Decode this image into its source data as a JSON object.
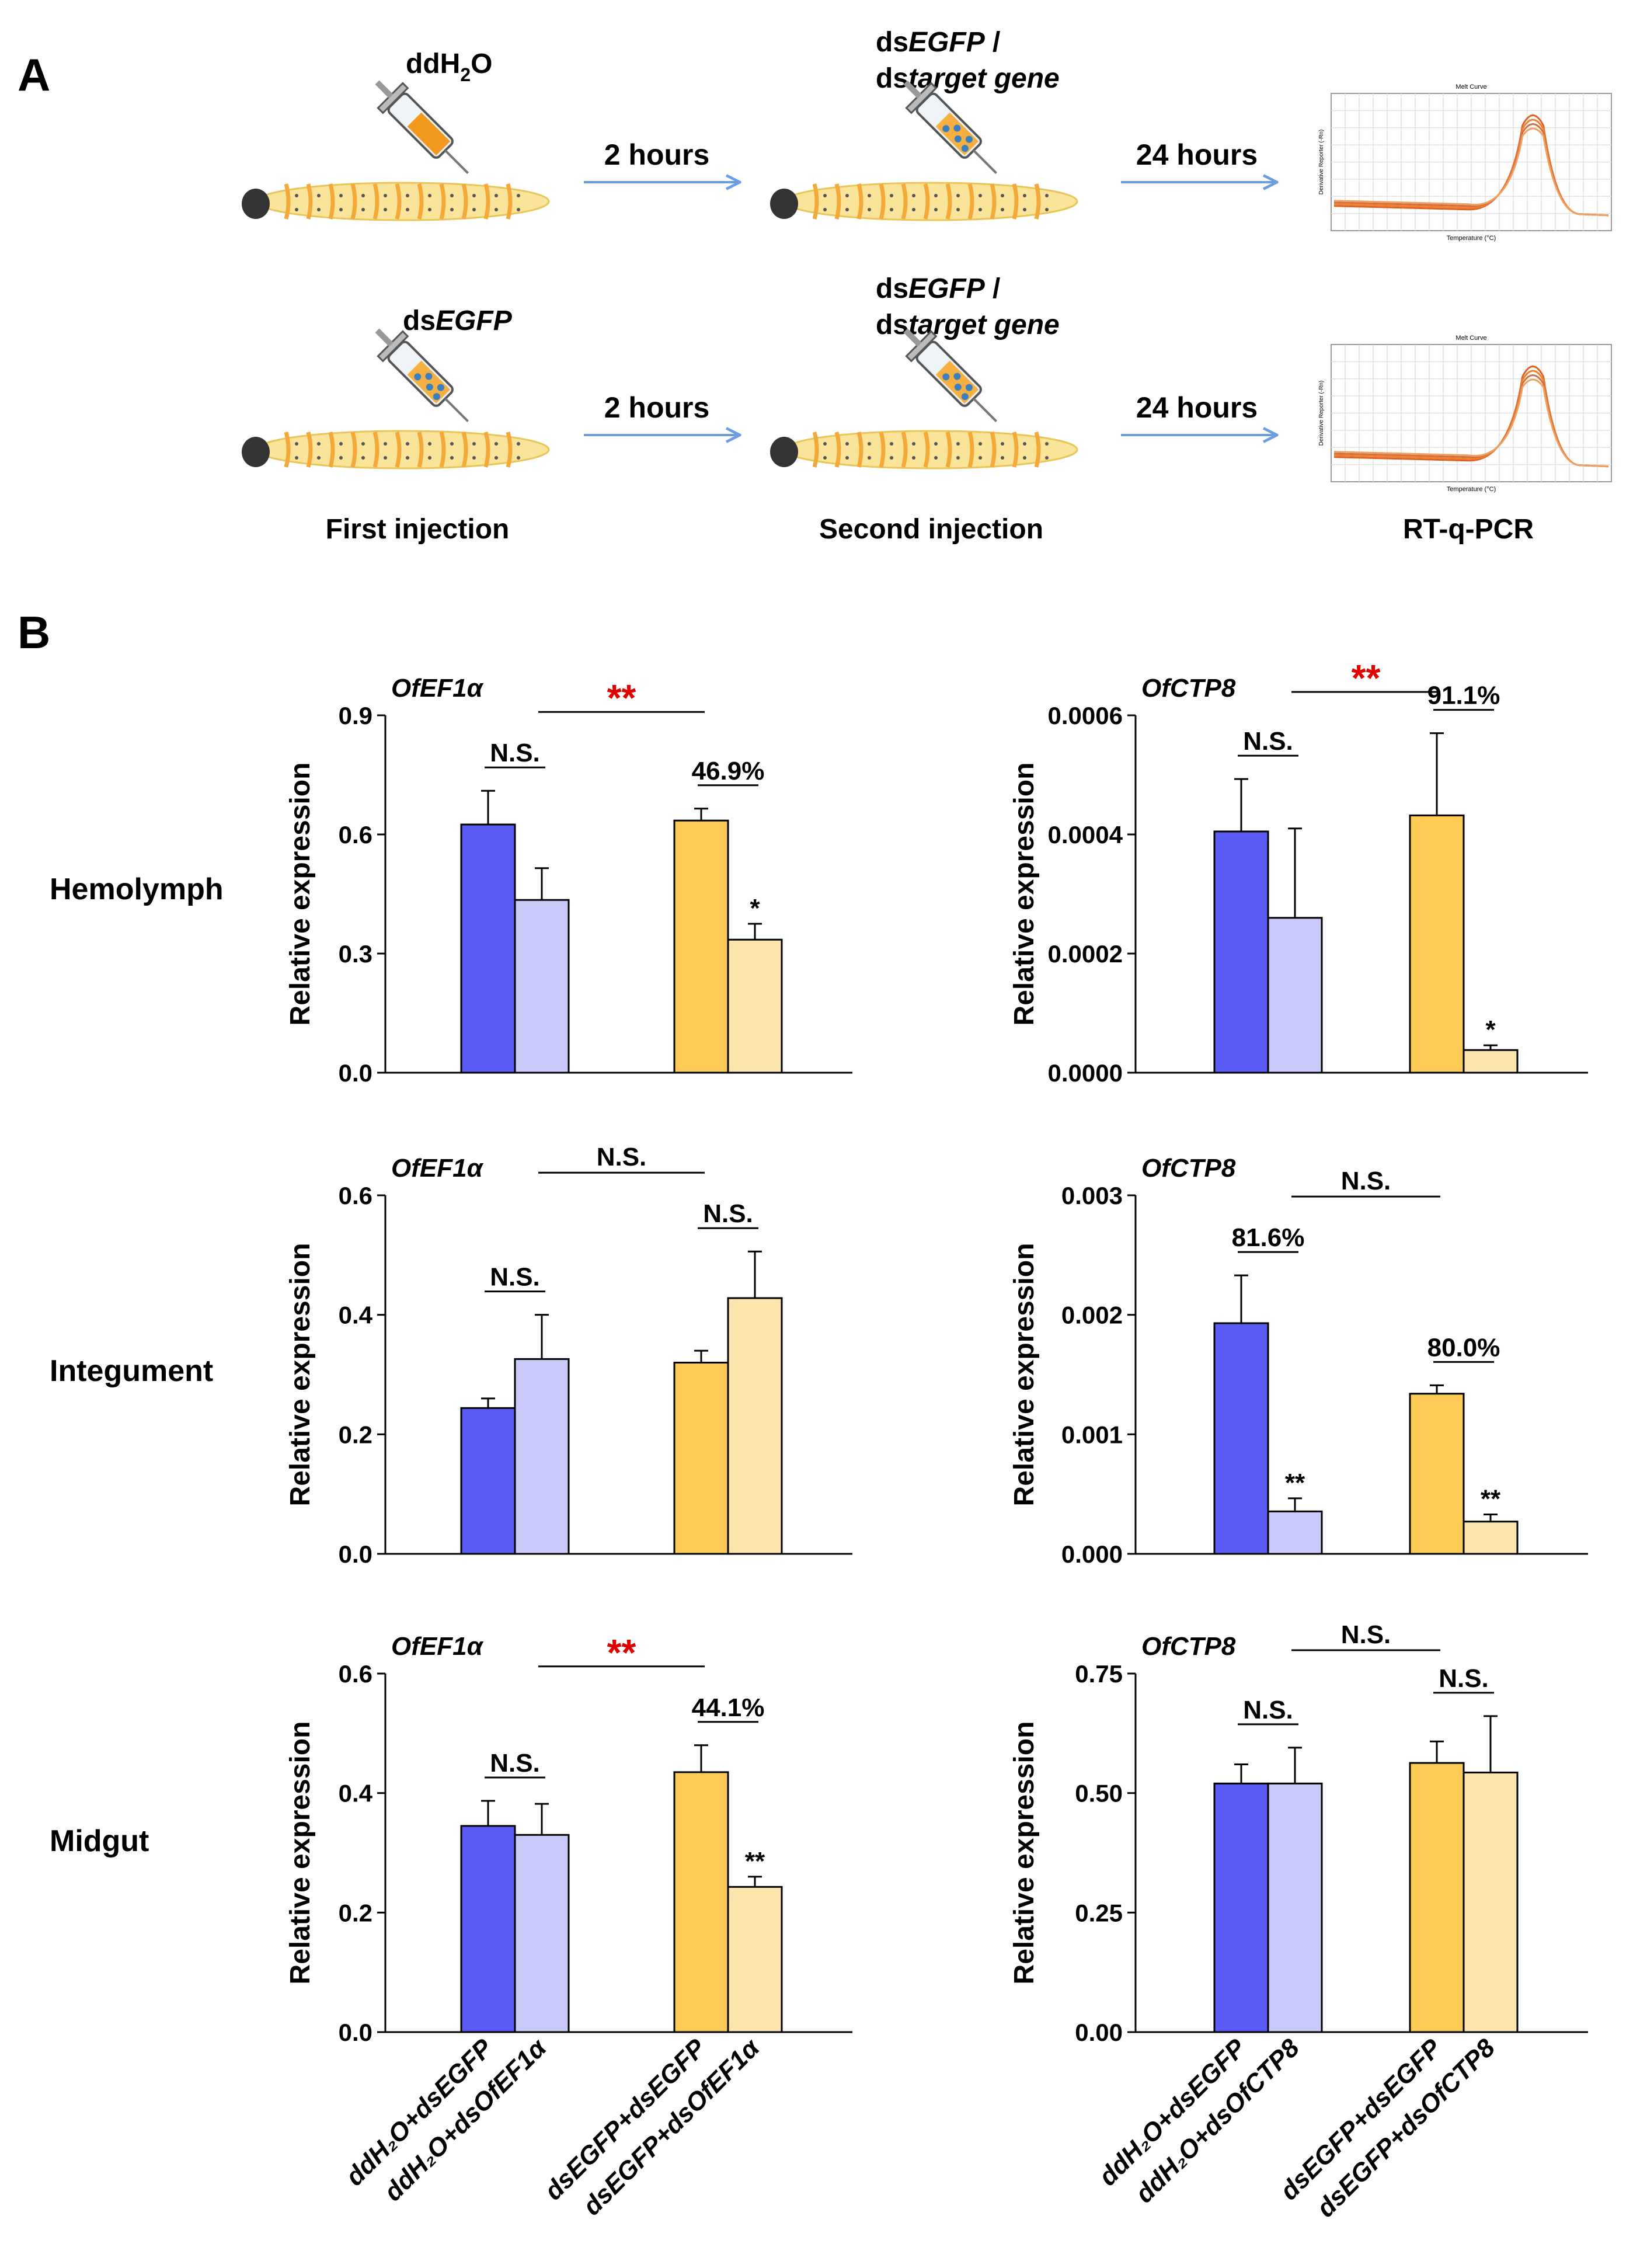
{
  "panels": {
    "a": "A",
    "b": "B"
  },
  "schematic": {
    "row1_first": "ddH2O",
    "row2_first": "dsEGFP",
    "second_line1": "dsEGFP /",
    "second_line2": "dstarget gene",
    "arrow1": "2 hours",
    "arrow2": "24 hours",
    "steps": [
      "First injection",
      "Second injection",
      "RT-q-PCR"
    ],
    "melt_title": "Melt Curve",
    "melt_xlabel": "Temperature (°C)",
    "melt_ylabel": "Derivative Reporter (-Rn)"
  },
  "tissues": [
    "Hemolymph",
    "Integument",
    "Midgut"
  ],
  "colors": {
    "blue_dark": "#5b5bf5",
    "blue_light": "#c9c9fa",
    "yellow_dark": "#fccb55",
    "yellow_light": "#fde6ad",
    "significance": "#e00000",
    "arrow": "#6a9ee0"
  },
  "ylabel": "Relative expression",
  "chart_data": [
    {
      "type": "bar",
      "tissue": "Hemolymph",
      "title": "OfEF1α",
      "categories": [
        "ddH₂O+dsEGFP",
        "ddH₂O+dsOfEF1α",
        "dsEGFP+dsEGFP",
        "dsEGFP+dsOfEF1α"
      ],
      "values": [
        0.625,
        0.435,
        0.635,
        0.335
      ],
      "errors": [
        0.085,
        0.08,
        0.03,
        0.04
      ],
      "ylim": [
        0,
        0.9
      ],
      "yticks": [
        "0.0",
        "0.3",
        "0.6",
        "0.9"
      ],
      "pair_labels": [
        "N.S.",
        "46.9%"
      ],
      "bar_marks": [
        "",
        "",
        "",
        "*"
      ],
      "between": "**"
    },
    {
      "type": "bar",
      "tissue": "Hemolymph",
      "title": "OfCTP8",
      "categories": [
        "ddH₂O+dsEGFP",
        "ddH₂O+dsOfCTP8",
        "dsEGFP+dsEGFP",
        "dsEGFP+dsOfCTP8"
      ],
      "values": [
        0.000405,
        0.00026,
        0.000432,
        3.8e-05
      ],
      "errors": [
        8.8e-05,
        0.00015,
        0.000138,
        8e-06
      ],
      "ylim": [
        0,
        0.0006
      ],
      "yticks": [
        "0.0000",
        "0.0002",
        "0.0004",
        "0.0006"
      ],
      "pair_labels": [
        "N.S.",
        "91.1%"
      ],
      "bar_marks": [
        "",
        "",
        "",
        "*"
      ],
      "between": "**"
    },
    {
      "type": "bar",
      "tissue": "Integument",
      "title": "OfEF1α",
      "categories": [
        "ddH₂O+dsEGFP",
        "ddH₂O+dsOfEF1α",
        "dsEGFP+dsEGFP",
        "dsEGFP+dsOfEF1α"
      ],
      "values": [
        0.244,
        0.326,
        0.32,
        0.428
      ],
      "errors": [
        0.016,
        0.074,
        0.02,
        0.078
      ],
      "ylim": [
        0,
        0.6
      ],
      "yticks": [
        "0.0",
        "0.2",
        "0.4",
        "0.6"
      ],
      "pair_labels": [
        "N.S.",
        "N.S."
      ],
      "bar_marks": [
        "",
        "",
        "",
        ""
      ],
      "between": "N.S."
    },
    {
      "type": "bar",
      "tissue": "Integument",
      "title": "OfCTP8",
      "categories": [
        "ddH₂O+dsEGFP",
        "ddH₂O+dsOfCTP8",
        "dsEGFP+dsEGFP",
        "dsEGFP+dsOfCTP8"
      ],
      "values": [
        0.00193,
        0.000355,
        0.00134,
        0.00027
      ],
      "errors": [
        0.0004,
        0.00011,
        7e-05,
        6e-05
      ],
      "ylim": [
        0,
        0.003
      ],
      "yticks": [
        "0.000",
        "0.001",
        "0.002",
        "0.003"
      ],
      "pair_labels": [
        "81.6%",
        "80.0%"
      ],
      "bar_marks": [
        "",
        "**",
        "",
        "**"
      ],
      "between": "N.S."
    },
    {
      "type": "bar",
      "tissue": "Midgut",
      "title": "OfEF1α",
      "categories": [
        "ddH₂O+dsEGFP",
        "ddH₂O+dsOfEF1α",
        "dsEGFP+dsEGFP",
        "dsEGFP+dsOfEF1α"
      ],
      "values": [
        0.345,
        0.33,
        0.435,
        0.243
      ],
      "errors": [
        0.042,
        0.052,
        0.045,
        0.017
      ],
      "ylim": [
        0,
        0.6
      ],
      "yticks": [
        "0.0",
        "0.2",
        "0.4",
        "0.6"
      ],
      "pair_labels": [
        "N.S.",
        "44.1%"
      ],
      "bar_marks": [
        "",
        "",
        "",
        "**"
      ],
      "between": "**"
    },
    {
      "type": "bar",
      "tissue": "Midgut",
      "title": "OfCTP8",
      "categories": [
        "ddH₂O+dsEGFP",
        "ddH₂O+dsOfCTP8",
        "dsEGFP+dsEGFP",
        "dsEGFP+dsOfCTP8"
      ],
      "values": [
        0.52,
        0.52,
        0.563,
        0.543
      ],
      "errors": [
        0.04,
        0.075,
        0.045,
        0.118
      ],
      "ylim": [
        0,
        0.75
      ],
      "yticks": [
        "0.00",
        "0.25",
        "0.50",
        "0.75"
      ],
      "pair_labels": [
        "N.S.",
        "N.S."
      ],
      "bar_marks": [
        "",
        "",
        "",
        ""
      ],
      "between": "N.S."
    }
  ]
}
